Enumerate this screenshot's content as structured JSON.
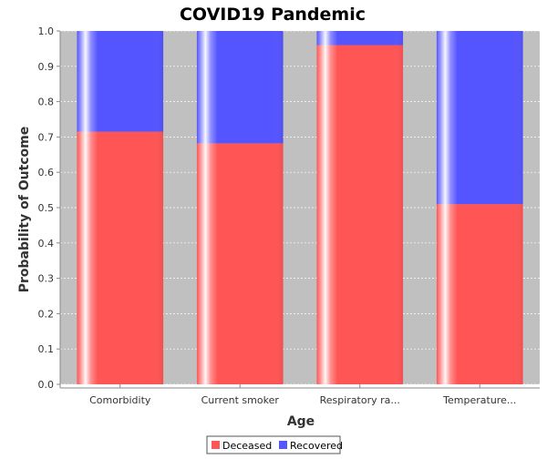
{
  "chart_data": {
    "type": "bar",
    "stacked": true,
    "title": "COVID19 Pandemic",
    "xlabel": "Age",
    "ylabel": "Probability of Outcome",
    "categories": [
      "Comorbidity",
      "Current smoker",
      "Respiratory ra...",
      "Temperature..."
    ],
    "series": [
      {
        "name": "Deceased",
        "values": [
          0.715,
          0.682,
          0.96,
          0.51
        ],
        "color": "#ff5555"
      },
      {
        "name": "Recovered",
        "values": [
          0.285,
          0.318,
          0.04,
          0.49
        ],
        "color": "#5555ff"
      }
    ],
    "ylim": [
      0.0,
      1.0
    ],
    "yticks": [
      "0.0",
      "0.1",
      "0.2",
      "0.3",
      "0.4",
      "0.5",
      "0.6",
      "0.7",
      "0.8",
      "0.9",
      "1.0"
    ],
    "grid": true,
    "plot_background": "#c0c0c0",
    "legend_position": "bottom"
  }
}
